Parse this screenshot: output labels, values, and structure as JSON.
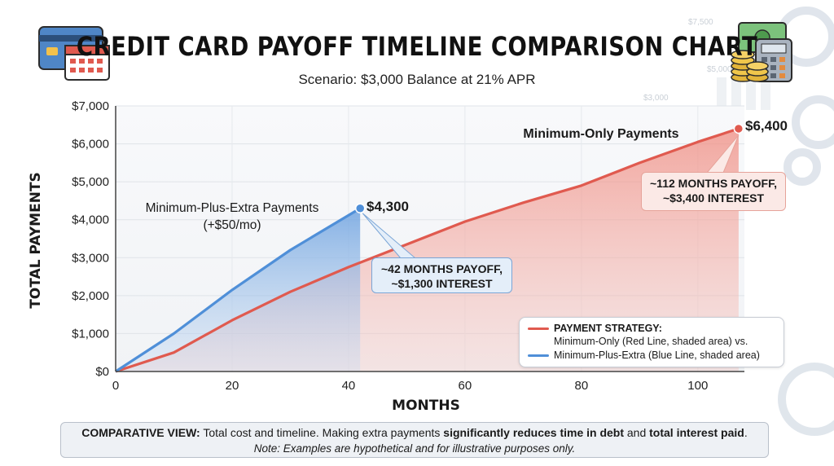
{
  "header": {
    "title": "CREDIT CARD PAYOFF TIMELINE COMPARISON CHART",
    "subtitle": "Scenario: $3,000 Balance at 21% APR"
  },
  "chart_data": {
    "type": "area",
    "title": "CREDIT CARD PAYOFF TIMELINE COMPARISON CHART",
    "subtitle": "Scenario: $3,000 Balance at 21% APR",
    "xlabel": "MONTHS",
    "ylabel": "TOTAL PAYMENTS",
    "xlim": [
      0,
      108
    ],
    "ylim": [
      0,
      7000
    ],
    "xticks": [
      0,
      20,
      40,
      60,
      80,
      100
    ],
    "yticks": [
      0,
      1000,
      2000,
      3000,
      4000,
      5000,
      6000,
      7000
    ],
    "ytick_labels": [
      "$0",
      "$1,000",
      "$2,000",
      "$3,000",
      "$4,000",
      "$5,000",
      "$6,000",
      "$7,000"
    ],
    "grid": true,
    "legend_position": "bottom-right",
    "series": [
      {
        "name": "Minimum-Only Payments",
        "color": "#e05a4f",
        "points": [
          [
            0,
            0
          ],
          [
            10,
            500
          ],
          [
            20,
            1350
          ],
          [
            30,
            2100
          ],
          [
            40,
            2750
          ],
          [
            50,
            3350
          ],
          [
            60,
            3950
          ],
          [
            70,
            4450
          ],
          [
            80,
            4900
          ],
          [
            90,
            5500
          ],
          [
            100,
            6050
          ],
          [
            107,
            6400
          ]
        ],
        "end_value_label": "$6,400",
        "callout": [
          "~112 MONTHS PAYOFF,",
          "~$3,400 INTEREST"
        ]
      },
      {
        "name": "Minimum-Plus-Extra Payments",
        "name_note": "(+$50/mo)",
        "color": "#4f8fd8",
        "points": [
          [
            0,
            0
          ],
          [
            10,
            1000
          ],
          [
            20,
            2150
          ],
          [
            30,
            3200
          ],
          [
            42,
            4300
          ]
        ],
        "end_value_label": "$4,300",
        "callout": [
          "~42 MONTHS PAYOFF,",
          "~$1,300 INTEREST"
        ]
      }
    ]
  },
  "legend": {
    "heading": "PAYMENT STRATEGY:",
    "line1": "Minimum-Only (Red Line, shaded area) vs.",
    "line2": "Minimum-Plus-Extra (Blue Line, shaded area)"
  },
  "footer": {
    "lead": "COMPARATIVE VIEW:",
    "text1": " Total cost and timeline. Making extra payments ",
    "bold1": "significantly reduces time in debt",
    "text2": " and ",
    "bold2": "total interest paid",
    "text3": ".",
    "note": "Note: Examples are hypothetical and for illustrative purposes only."
  },
  "decor": {
    "faint_labels": [
      "$7,500",
      "$5,000",
      "$3,000"
    ],
    "icons": [
      "credit-card-icon",
      "calendar-icon",
      "cash-icon",
      "coins-icon",
      "calculator-icon",
      "gear-icon",
      "bar-chart-icon"
    ]
  }
}
